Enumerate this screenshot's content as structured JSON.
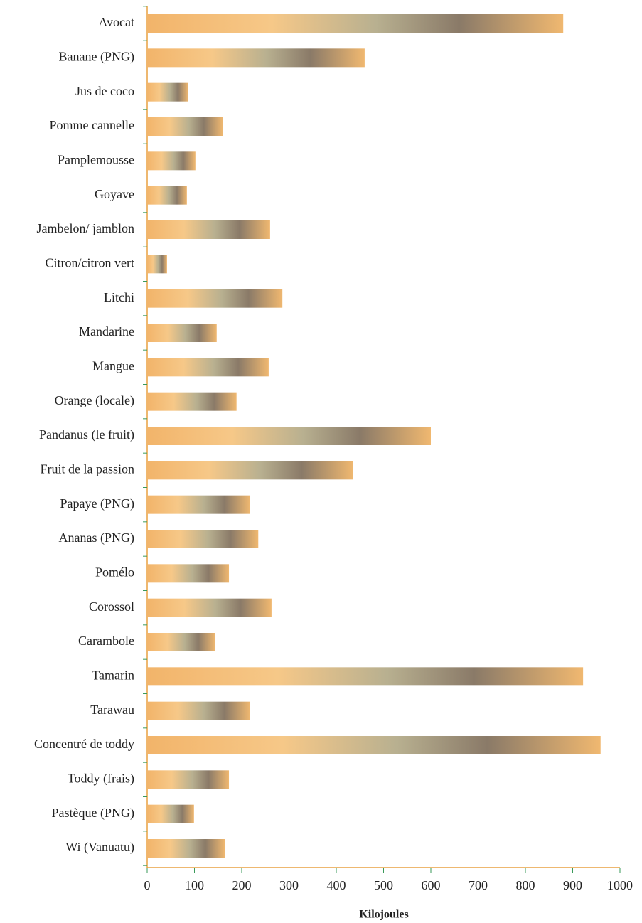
{
  "chart_data": {
    "type": "barh",
    "x_label": "Kilojoules",
    "categories": [
      "Avocat",
      "Banane (PNG)",
      "Jus de coco",
      "Pomme cannelle",
      "Pamplemousse",
      "Goyave",
      "Jambelon/ jamblon",
      "Citron/citron vert",
      "Litchi",
      "Mandarine",
      "Mangue",
      "Orange (locale)",
      "Pandanus (le fruit)",
      "Fruit de la passion",
      "Papaye (PNG)",
      "Ananas (PNG)",
      "Pomélo",
      "Corossol",
      "Carambole",
      "Tamarin",
      "Tarawau",
      "Concentré de toddy",
      "Toddy (frais)",
      "Pastèque (PNG)",
      "Wi (Vanuatu)"
    ],
    "values": [
      880,
      460,
      87,
      160,
      102,
      84,
      260,
      42,
      286,
      147,
      257,
      189,
      600,
      436,
      218,
      235,
      173,
      263,
      144,
      922,
      218,
      959,
      173,
      99,
      164
    ],
    "color": "#f2b46a",
    "xlim": [
      0,
      1000
    ],
    "xticks": [
      0,
      100,
      200,
      300,
      400,
      500,
      600,
      700,
      800,
      900,
      1000
    ]
  }
}
